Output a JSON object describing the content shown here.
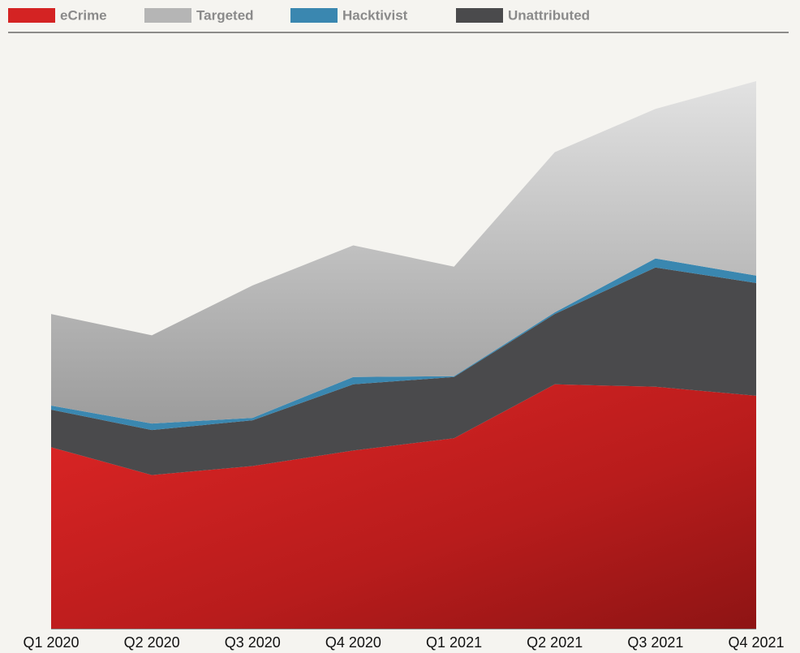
{
  "chart_data": {
    "type": "stacked-area",
    "categories": [
      "Q1 2020",
      "Q2 2020",
      "Q3 2020",
      "Q4 2020",
      "Q1 2021",
      "Q2 2021",
      "Q3 2021",
      "Q4 2021"
    ],
    "series": [
      {
        "name": "eCrime",
        "color": "#d42323",
        "values": [
          222,
          188,
          199,
          218,
          233,
          299,
          296,
          285
        ]
      },
      {
        "name": "Targeted",
        "color": "#b5b5b5",
        "values": [
          112,
          108,
          162,
          161,
          134,
          196,
          183,
          238
        ]
      },
      {
        "name": "Hacktivist",
        "color": "#3a87b0",
        "values": [
          5,
          8,
          3,
          9,
          1,
          2,
          11,
          9
        ]
      },
      {
        "name": "Unattributed",
        "color": "#4a4a4c",
        "values": [
          46,
          55,
          56,
          81,
          75,
          86,
          146,
          138
        ]
      }
    ]
  }
}
